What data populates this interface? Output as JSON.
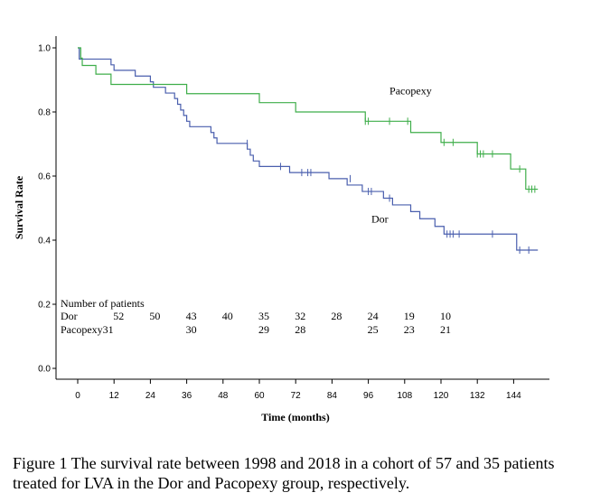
{
  "chart_data": {
    "type": "line",
    "subtype": "kaplan-meier-step",
    "xlabel": "Time (months)",
    "ylabel": "Survival Rate",
    "xlim": [
      -6,
      154
    ],
    "ylim": [
      -0.02,
      1.04
    ],
    "xticks": [
      0,
      12,
      24,
      36,
      48,
      60,
      72,
      84,
      96,
      108,
      120,
      132,
      144
    ],
    "yticks": [
      0.0,
      0.2,
      0.4,
      0.6,
      0.8,
      1.0
    ],
    "ytick_labels": [
      "0.0",
      "0.2",
      "0.4",
      "0.6",
      "0.8",
      "1.0"
    ],
    "series": [
      {
        "name": "Dor",
        "color": "#4a5fae",
        "steps": [
          [
            0,
            1.0
          ],
          [
            0.5,
            0.965
          ],
          [
            11,
            0.947
          ],
          [
            12,
            0.93
          ],
          [
            19,
            0.912
          ],
          [
            24,
            0.894
          ],
          [
            25,
            0.877
          ],
          [
            29,
            0.859
          ],
          [
            32,
            0.842
          ],
          [
            33,
            0.824
          ],
          [
            34,
            0.806
          ],
          [
            35,
            0.789
          ],
          [
            36,
            0.771
          ],
          [
            37,
            0.754
          ],
          [
            44,
            0.736
          ],
          [
            45,
            0.719
          ],
          [
            46,
            0.702
          ],
          [
            56,
            0.684
          ],
          [
            57,
            0.665
          ],
          [
            58,
            0.647
          ],
          [
            60,
            0.63
          ],
          [
            70,
            0.611
          ],
          [
            83,
            0.592
          ],
          [
            89,
            0.572
          ],
          [
            94,
            0.552
          ],
          [
            101,
            0.531
          ],
          [
            104,
            0.51
          ],
          [
            110,
            0.489
          ],
          [
            113,
            0.467
          ],
          [
            118,
            0.443
          ],
          [
            121,
            0.419
          ],
          [
            145,
            0.369
          ]
        ],
        "end_x": 152,
        "censored": [
          [
            56,
            0.702
          ],
          [
            67,
            0.63
          ],
          [
            74,
            0.611
          ],
          [
            76,
            0.611
          ],
          [
            77,
            0.611
          ],
          [
            90,
            0.592
          ],
          [
            96,
            0.552
          ],
          [
            97,
            0.552
          ],
          [
            103,
            0.531
          ],
          [
            122,
            0.419
          ],
          [
            123,
            0.419
          ],
          [
            124,
            0.419
          ],
          [
            126,
            0.419
          ],
          [
            137,
            0.419
          ],
          [
            146,
            0.369
          ],
          [
            149,
            0.369
          ]
        ]
      },
      {
        "name": "Pacopexy",
        "color": "#3fae4a",
        "steps": [
          [
            0,
            1.0
          ],
          [
            1,
            0.968
          ],
          [
            1.5,
            0.945
          ],
          [
            6,
            0.918
          ],
          [
            11,
            0.886
          ],
          [
            36,
            0.857
          ],
          [
            60,
            0.829
          ],
          [
            72,
            0.8
          ],
          [
            95,
            0.771
          ],
          [
            110,
            0.736
          ],
          [
            120,
            0.705
          ],
          [
            132,
            0.669
          ],
          [
            143,
            0.622
          ],
          [
            148,
            0.559
          ]
        ],
        "end_x": 152,
        "censored": [
          [
            95,
            0.771
          ],
          [
            96,
            0.771
          ],
          [
            103,
            0.771
          ],
          [
            109,
            0.771
          ],
          [
            121,
            0.705
          ],
          [
            124,
            0.705
          ],
          [
            132,
            0.669
          ],
          [
            133,
            0.669
          ],
          [
            134,
            0.669
          ],
          [
            137,
            0.669
          ],
          [
            146,
            0.622
          ],
          [
            149,
            0.559
          ],
          [
            150,
            0.559
          ],
          [
            151,
            0.559
          ]
        ]
      }
    ],
    "annotations": [
      {
        "text": "Pacopexy",
        "x": 103,
        "y": 0.855
      },
      {
        "text": "Dor",
        "x": 97,
        "y": 0.455
      }
    ],
    "number_at_risk": {
      "title": "Number of patients",
      "rows": [
        {
          "label": "Dor",
          "values": [
            {
              "x": 12,
              "value": "52"
            },
            {
              "x": 24,
              "value": "50"
            },
            {
              "x": 36,
              "value": "43"
            },
            {
              "x": 48,
              "value": "40"
            },
            {
              "x": 60,
              "value": "35"
            },
            {
              "x": 72,
              "value": "32"
            },
            {
              "x": 84,
              "value": "28"
            },
            {
              "x": 96,
              "value": "24"
            },
            {
              "x": 108,
              "value": "19"
            },
            {
              "x": 120,
              "value": "10"
            }
          ]
        },
        {
          "label": "Pacopexy31",
          "values": [
            {
              "x": 36,
              "value": "30"
            },
            {
              "x": 60,
              "value": "29"
            },
            {
              "x": 72,
              "value": "28"
            },
            {
              "x": 96,
              "value": "25"
            },
            {
              "x": 108,
              "value": "23"
            },
            {
              "x": 120,
              "value": "21"
            }
          ]
        }
      ]
    }
  },
  "caption": "Figure 1 The survival rate between 1998 and 2018 in a cohort of 57 and 35 patients treated for LVA in the Dor and Pacopexy group, respectively."
}
